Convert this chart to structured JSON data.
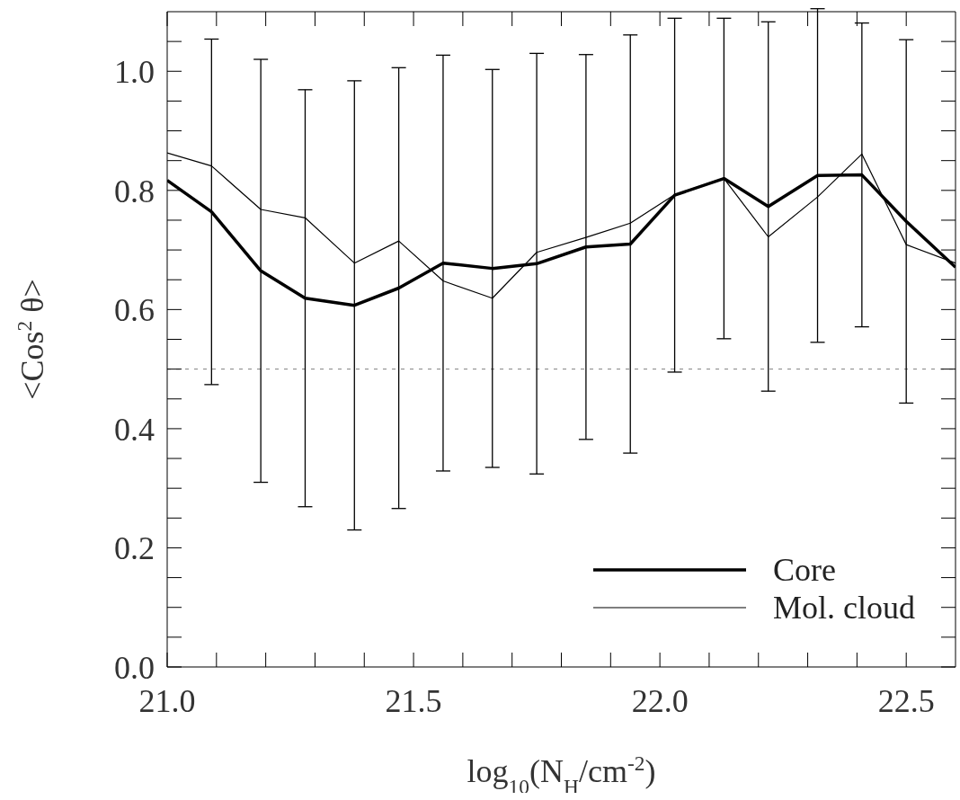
{
  "chart_data": {
    "type": "line",
    "xlabel": "log$_{10}$(N$_{H}$/cm$^{-2}$)",
    "ylabel": "<Cos$^{2}$ θ>",
    "x": [
      21.0,
      21.09,
      21.19,
      21.28,
      21.38,
      21.47,
      21.56,
      21.66,
      21.75,
      21.85,
      21.94,
      22.03,
      22.13,
      22.22,
      22.32,
      22.41,
      22.5,
      22.6
    ],
    "series": [
      {
        "name": "Core",
        "color": "#000000",
        "values": [
          0.817,
          0.764,
          0.665,
          0.619,
          0.607,
          0.636,
          0.678,
          0.669,
          0.677,
          0.705,
          0.71,
          0.792,
          0.82,
          0.773,
          0.825,
          0.826,
          0.748,
          0.671
        ],
        "errors": [
          null,
          0.29,
          0.355,
          0.35,
          0.377,
          0.37,
          0.349,
          0.334,
          0.353,
          0.323,
          0.351,
          0.297,
          0.269,
          0.31,
          0.28,
          0.255,
          0.305,
          null
        ]
      },
      {
        "name": "Mol. cloud",
        "color": "#000000",
        "values": [
          0.863,
          0.841,
          0.768,
          0.754,
          0.678,
          0.715,
          0.648,
          0.619,
          0.696,
          0.721,
          0.745,
          0.793,
          0.82,
          0.722,
          0.789,
          0.861,
          0.709,
          0.678
        ]
      }
    ],
    "xlim": [
      21.0,
      22.6
    ],
    "xticks": [
      {
        "value": 21.0,
        "label": "21.0"
      },
      {
        "value": 21.1,
        "label": null
      },
      {
        "value": 21.2,
        "label": null
      },
      {
        "value": 21.3,
        "label": null
      },
      {
        "value": 21.4,
        "label": null
      },
      21.5,
      {
        "value": 21.6,
        "label": null
      },
      {
        "value": 21.7,
        "label": null
      },
      {
        "value": 21.8,
        "label": null
      },
      {
        "value": 21.9,
        "label": null
      },
      {
        "value": 22.0,
        "label": "22.0"
      },
      {
        "value": 22.1,
        "label": null
      },
      {
        "value": 22.2,
        "label": null
      },
      {
        "value": 22.3,
        "label": null
      },
      {
        "value": 22.4,
        "label": null
      },
      22.5
    ],
    "ylim": [
      0,
      1.1
    ],
    "yticks": [
      {
        "value": 0,
        "label": "0.0"
      },
      {
        "value": 0.05,
        "label": null
      },
      {
        "value": 0.1,
        "label": null
      },
      {
        "value": 0.15,
        "label": null
      },
      0.2,
      {
        "value": 0.25,
        "label": null
      },
      {
        "value": 0.3,
        "label": null
      },
      {
        "value": 0.35,
        "label": null
      },
      0.4,
      {
        "value": 0.45,
        "label": null
      },
      {
        "value": 0.5,
        "label": null
      },
      {
        "value": 0.55,
        "label": null
      },
      0.6,
      {
        "value": 0.65,
        "label": null
      },
      {
        "value": 0.7,
        "label": null
      },
      {
        "value": 0.75,
        "label": null
      },
      0.8,
      {
        "value": 0.85,
        "label": null
      },
      {
        "value": 0.9,
        "label": null
      },
      {
        "value": 0.95,
        "label": null
      },
      {
        "value": 1.0,
        "label": "1.0"
      },
      {
        "value": 1.05,
        "label": null
      }
    ],
    "ref_lines": [
      {
        "axis": "y",
        "value": 0.5,
        "color": "#808080",
        "line_style": "dotted"
      }
    ],
    "grid": false,
    "legend": "bottom right",
    "marker": "none",
    "line_style": "solid"
  }
}
